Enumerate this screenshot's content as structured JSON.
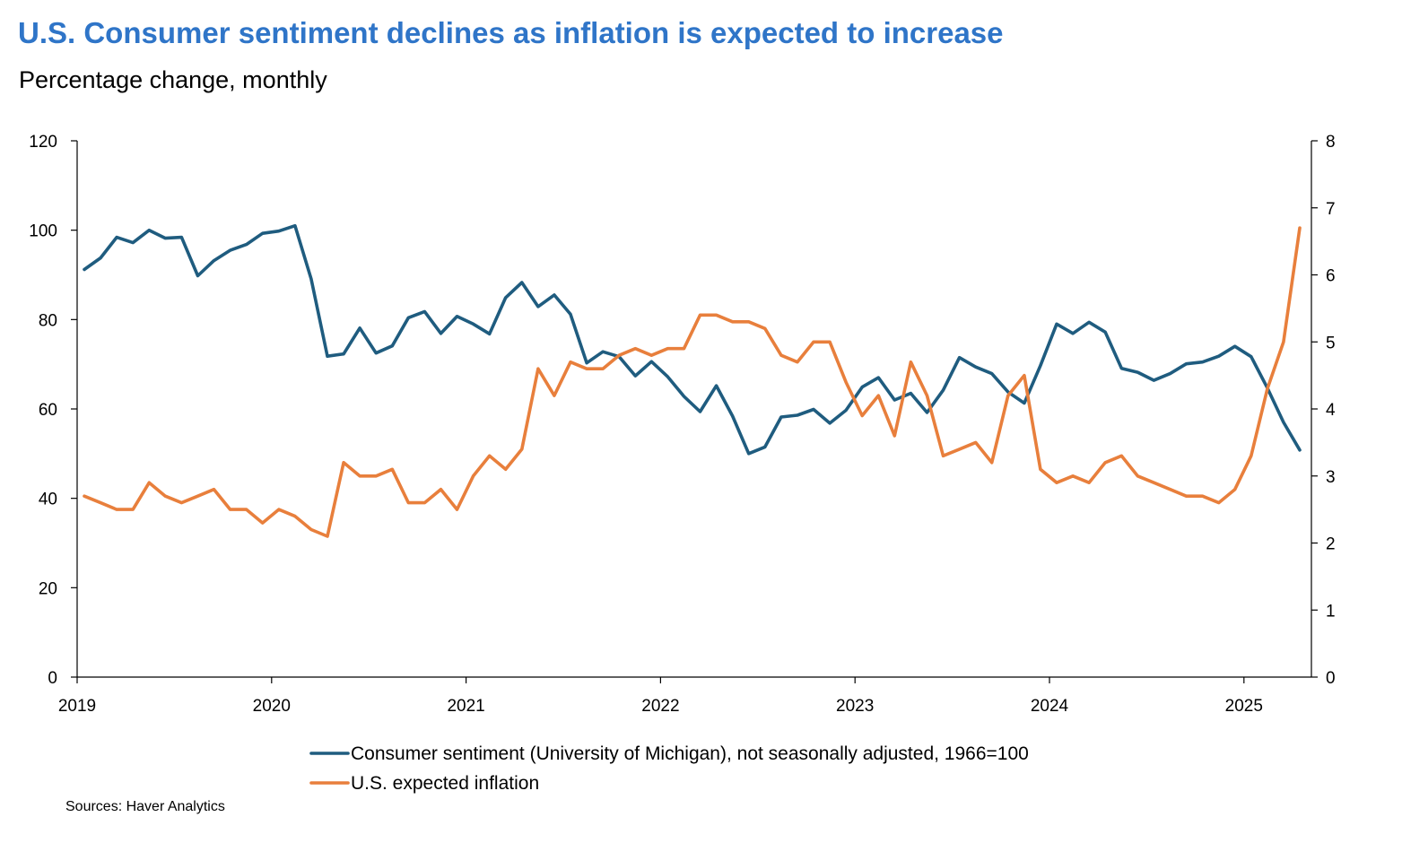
{
  "title": "U.S. Consumer sentiment declines as inflation is expected to increase",
  "subtitle": "Percentage change, monthly",
  "source": "Sources: Haver Analytics",
  "chart_data": {
    "type": "line",
    "title": "U.S. Consumer sentiment declines as inflation is expected to increase",
    "subtitle": "Percentage change, monthly",
    "x_ticks": [
      "2019",
      "2020",
      "2021",
      "2022",
      "2023",
      "2024",
      "2025"
    ],
    "x_start": "2019-01",
    "y_left": {
      "min": 0,
      "max": 120,
      "ticks": [
        "0",
        "20",
        "40",
        "60",
        "80",
        "100",
        "120"
      ]
    },
    "y_right": {
      "min": 0,
      "max": 8,
      "ticks": [
        "0",
        "1",
        "2",
        "3",
        "4",
        "5",
        "6",
        "7",
        "8"
      ]
    },
    "grid": false,
    "legend_position": "bottom",
    "series": [
      {
        "name": "Consumer sentiment (University of Michigan), not seasonally adjusted, 1966=100",
        "axis": "left",
        "color": "#1f5c7f",
        "values": [
          91.2,
          93.8,
          98.4,
          97.2,
          100.0,
          98.2,
          98.4,
          89.8,
          93.2,
          95.5,
          96.8,
          99.3,
          99.8,
          101.0,
          89.1,
          71.8,
          72.3,
          78.1,
          72.5,
          74.1,
          80.4,
          81.8,
          76.9,
          80.7,
          79.0,
          76.8,
          84.9,
          88.3,
          82.9,
          85.5,
          81.2,
          70.3,
          72.8,
          71.7,
          67.4,
          70.6,
          67.2,
          62.8,
          59.4,
          65.2,
          58.4,
          50.0,
          51.5,
          58.2,
          58.6,
          59.9,
          56.8,
          59.7,
          64.9,
          67.0,
          62.0,
          63.5,
          59.2,
          64.2,
          71.5,
          69.4,
          67.9,
          63.8,
          61.3,
          69.7,
          79.0,
          76.9,
          79.4,
          77.2,
          69.1,
          68.2,
          66.4,
          67.9,
          70.1,
          70.5,
          71.8,
          74.0,
          71.7,
          64.7,
          57.0,
          50.8
        ]
      },
      {
        "name": "U.S. expected inflation",
        "axis": "right",
        "color": "#e87f3c",
        "values": [
          2.7,
          2.6,
          2.5,
          2.5,
          2.9,
          2.7,
          2.6,
          2.7,
          2.8,
          2.5,
          2.5,
          2.3,
          2.5,
          2.4,
          2.2,
          2.1,
          3.2,
          3.0,
          3.0,
          3.1,
          2.6,
          2.6,
          2.8,
          2.5,
          3.0,
          3.3,
          3.1,
          3.4,
          4.6,
          4.2,
          4.7,
          4.6,
          4.6,
          4.8,
          4.9,
          4.8,
          4.9,
          4.9,
          5.4,
          5.4,
          5.3,
          5.3,
          5.2,
          4.8,
          4.7,
          5.0,
          5.0,
          4.4,
          3.9,
          4.2,
          3.6,
          4.7,
          4.2,
          3.3,
          3.4,
          3.5,
          3.2,
          4.2,
          4.5,
          3.1,
          2.9,
          3.0,
          2.9,
          3.2,
          3.3,
          3.0,
          2.9,
          2.8,
          2.7,
          2.7,
          2.6,
          2.8,
          3.3,
          4.3,
          5.0,
          6.7
        ]
      }
    ]
  }
}
